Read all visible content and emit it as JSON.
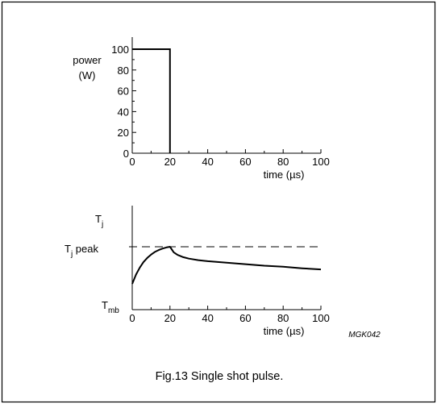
{
  "figure": {
    "code": "MGK042",
    "caption": "Fig.13  Single shot pulse."
  },
  "chart_data": [
    {
      "type": "line",
      "ylabel_lines": [
        "power",
        "(W)"
      ],
      "xlabel": "time (µs)",
      "xlim": [
        0,
        100
      ],
      "ylim": [
        0,
        100
      ],
      "x_ticks": [
        0,
        20,
        40,
        60,
        80,
        100
      ],
      "y_ticks": [
        0,
        20,
        40,
        60,
        80,
        100
      ],
      "series": [
        {
          "x": [
            0,
            20,
            20
          ],
          "y": [
            100,
            100,
            0
          ]
        }
      ]
    },
    {
      "type": "line",
      "xlabel": "time (µs)",
      "xlim": [
        0,
        100
      ],
      "x_ticks": [
        0,
        20,
        40,
        60,
        80,
        100
      ],
      "y_axis_labels": {
        "top": {
          "main": "T",
          "sub": "j"
        },
        "peak": {
          "main": "T",
          "sub": "j",
          "suffix": " peak"
        },
        "bottom": {
          "main": "T",
          "sub": "mb"
        }
      },
      "reference_line": "dashed at Tj peak",
      "series": [
        {
          "x": [
            0,
            2,
            4,
            6,
            8,
            10,
            12,
            14,
            16,
            18,
            20,
            22,
            24,
            27,
            30,
            35,
            40,
            50,
            60,
            70,
            80,
            90,
            100
          ],
          "y": [
            0.0,
            0.25,
            0.44,
            0.59,
            0.7,
            0.79,
            0.86,
            0.91,
            0.95,
            0.98,
            1.0,
            0.85,
            0.78,
            0.72,
            0.68,
            0.64,
            0.61,
            0.57,
            0.53,
            0.49,
            0.46,
            0.42,
            0.39
          ]
        }
      ]
    }
  ]
}
